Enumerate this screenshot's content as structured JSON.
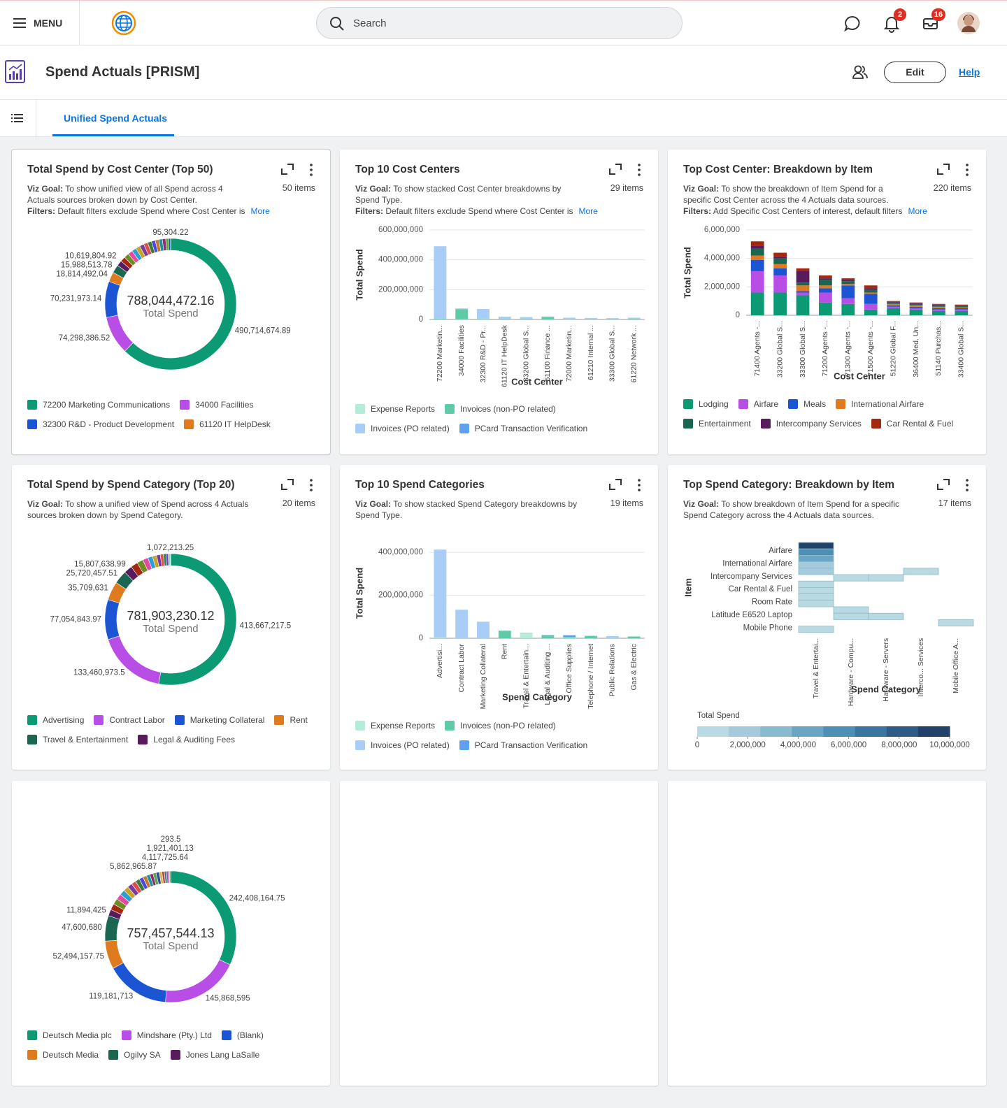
{
  "header": {
    "menu": "MENU",
    "search": "Search",
    "notifications": 2,
    "inbox": 16
  },
  "page": {
    "title": "Spend Actuals [PRISM]",
    "edit": "Edit",
    "help": "Help",
    "tab": "Unified Spend Actuals"
  },
  "chart_data": [
    {
      "type": "pie",
      "donut": true,
      "title": "Total Spend by Cost Center (Top 50)",
      "items": "50 items",
      "goal_label": "Viz Goal:",
      "goal": "To show unified view of all Spend across 4 Actuals sources broken down by Cost Center.",
      "filters_label": "Filters:",
      "filters": "Default filters exclude Spend where Cost Center is",
      "more": "More",
      "total": {
        "value": 788044472.16,
        "label": "788,044,472.16"
      },
      "total_caption": "Total Spend",
      "categories": [
        "72200 Marketing Communications",
        "34000 Facilities",
        "32300 R&D - Product Development",
        "61120 IT HelpDesk",
        null,
        null,
        null,
        null,
        null,
        null,
        null,
        null,
        null,
        null,
        null,
        null,
        null,
        null,
        null,
        null,
        null
      ],
      "values": [
        490714674.89,
        74298386.52,
        70231973.14,
        18814492.04,
        15988513.78,
        10619804.92,
        9800000,
        9500000,
        9200000,
        8900000,
        8600000,
        8300000,
        8000000,
        7700000,
        7400000,
        7100000,
        6800000,
        6500000,
        5500000,
        3900000,
        95304.22
      ],
      "value_labels": [
        "490,714,674.89",
        "74,298,386.52",
        "70,231,973.14",
        "18,814,492.04",
        "15,988,513.78",
        "10,619,804.92",
        null,
        null,
        null,
        null,
        null,
        null,
        null,
        null,
        null,
        null,
        null,
        null,
        null,
        null,
        "95,304.22"
      ],
      "colors": [
        "#0b9a74",
        "#b84ee6",
        "#1b55d4",
        "#e07a1f",
        "#1a6650",
        "#5a1a5e",
        "#a3280f",
        "#6b8e23",
        "#e64aa0",
        "#2a9fd6",
        "#c9a227",
        "#7a3b9e",
        "#d94f4f",
        "#3d7a3d",
        "#4a4ae0",
        "#c47a2c",
        "#1f8fa3",
        "#8c2d6b",
        "#57a845",
        "#2d4a9e",
        "#e0b43c"
      ]
    },
    {
      "type": "bar",
      "stacked": true,
      "grid": true,
      "title": "Top 10 Cost Centers",
      "items": "29 items",
      "goal_label": "Viz Goal:",
      "goal": "To show stacked Cost Center breakdowns by Spend Type.",
      "filters_label": "Filters:",
      "filters": "Default filters exclude Spend where Cost Center is",
      "more": "More",
      "ylabel": "Total Spend",
      "xlabel": "Cost Center",
      "ylim": [
        0,
        600000000
      ],
      "yticks": [
        0,
        {
          "value": 200000000,
          "label": "200,000,000"
        },
        {
          "value": 400000000,
          "label": "400,000,000"
        },
        {
          "value": 600000000,
          "label": "600,000,000"
        }
      ],
      "categories": [
        "72200 Marketin...",
        "34000 Facilities",
        "32300 R&D - Pr...",
        "61120 IT HelpDesk",
        "33200 Global S...",
        "51100 Finance ...",
        "72000 Marketin...",
        "61210 Internal ...",
        "33300 Global S...",
        "61220 Network ..."
      ],
      "series": [
        {
          "name": "Expense Reports",
          "color": "#b4ecdc",
          "values": [
            2000000,
            2000000,
            3000000,
            1000000,
            1000000,
            1000000,
            2000000,
            1000000,
            1000000,
            1000000
          ]
        },
        {
          "name": "Invoices (non-PO related)",
          "color": "#5fcba5",
          "values": [
            3000000,
            66000000,
            2000000,
            1000000,
            1000000,
            15000000,
            0,
            0,
            0,
            3000000
          ]
        },
        {
          "name": "Invoices (PO related)",
          "color": "#a8cdf7",
          "values": [
            485000000,
            6000000,
            65000000,
            17000000,
            14000000,
            4000000,
            10000000,
            9000000,
            8000000,
            8000000
          ]
        },
        {
          "name": "PCard Transaction Verification",
          "color": "#5ea2ef",
          "values": [
            700000,
            300000,
            0,
            0,
            0,
            0,
            0,
            0,
            0,
            0
          ]
        }
      ]
    },
    {
      "type": "bar",
      "stacked": true,
      "grid": true,
      "title": "Top Cost Center: Breakdown by Item",
      "items": "220 items",
      "goal_label": "Viz Goal:",
      "goal": "To show the breakdown of Item Spend for a specific Cost Center across the 4 Actuals data sources.",
      "filters_label": "Filters:",
      "filters": "Add Specific Cost Centers of interest, default filters",
      "more": "More",
      "ylabel": "Total Spend",
      "xlabel": "Cost Center",
      "ylim": [
        0,
        6000000
      ],
      "yticks": [
        0,
        {
          "value": 2000000,
          "label": "2,000,000"
        },
        {
          "value": 4000000,
          "label": "4,000,000"
        },
        {
          "value": 6000000,
          "label": "6,000,000"
        }
      ],
      "categories": [
        "71400 Agents -...",
        "33200 Global S...",
        "33300 Global S...",
        "71200 Agents -...",
        "71300 Agents -...",
        "71500 Agents -...",
        "51220 Global F...",
        "36400 Med. Un...",
        "51140 Purchas...",
        "33400 Global S..."
      ],
      "series": [
        {
          "name": "Lodging",
          "color": "#0b9a74",
          "values": [
            1600000,
            1600000,
            1400000,
            900000,
            800000,
            400000,
            500000,
            400000,
            300000,
            300000
          ]
        },
        {
          "name": "Airfare",
          "color": "#b84ee6",
          "values": [
            1500000,
            1200000,
            200000,
            700000,
            400000,
            400000,
            100000,
            100000,
            100000,
            100000
          ]
        },
        {
          "name": "Meals",
          "color": "#1b55d4",
          "values": [
            800000,
            500000,
            100000,
            300000,
            900000,
            700000,
            100000,
            100000,
            100000,
            100000
          ]
        },
        {
          "name": "International Airfare",
          "color": "#e07a1f",
          "values": [
            300000,
            300000,
            400000,
            200000,
            100000,
            100000,
            100000,
            100000,
            100000,
            50000
          ]
        },
        {
          "name": "Entertainment",
          "color": "#1a6650",
          "values": [
            500000,
            400000,
            200000,
            400000,
            200000,
            200000,
            100000,
            100000,
            100000,
            100000
          ]
        },
        {
          "name": "Intercompany Services",
          "color": "#5a1a5e",
          "values": [
            200000,
            100000,
            800000,
            100000,
            100000,
            100000,
            50000,
            50000,
            50000,
            50000
          ]
        },
        {
          "name": "Car Rental & Fuel",
          "color": "#a3280f",
          "values": [
            300000,
            300000,
            200000,
            200000,
            100000,
            200000,
            50000,
            50000,
            50000,
            50000
          ]
        }
      ]
    },
    {
      "type": "pie",
      "donut": true,
      "title": "Total Spend by Spend Category (Top 20)",
      "items": "20 items",
      "goal_label": "Viz Goal:",
      "goal": "To show a unified view of Spend across 4 Actuals sources broken down by Spend Category.",
      "total": {
        "value": 781903230.12,
        "label": "781,903,230.12"
      },
      "total_caption": "Total Spend",
      "categories": [
        "Advertising",
        "Contract Labor",
        "Marketing Collateral",
        "Rent",
        "Travel & Entertainment",
        "Legal & Auditing Fees",
        null,
        null,
        null,
        null,
        null,
        null,
        null,
        null,
        null,
        null,
        null,
        null
      ],
      "values": [
        413667217.5,
        133460973.5,
        77054843.97,
        35709631,
        25720457.51,
        15807638.99,
        13500000,
        12000000,
        10500000,
        9000000,
        8000000,
        7000000,
        6000000,
        5000000,
        4000000,
        2400000,
        1500000,
        1072213.25
      ],
      "value_labels": [
        "413,667,217.5",
        "133,460,973.5",
        "77,054,843.97",
        "35,709,631",
        "25,720,457.51",
        "15,807,638.99",
        null,
        null,
        null,
        null,
        null,
        null,
        null,
        null,
        null,
        null,
        null,
        "1,072,213.25"
      ],
      "colors": [
        "#0b9a74",
        "#b84ee6",
        "#1b55d4",
        "#e07a1f",
        "#1a6650",
        "#5a1a5e",
        "#a3280f",
        "#6b8e23",
        "#e64aa0",
        "#2a9fd6",
        "#c9a227",
        "#7a3b9e",
        "#d94f4f",
        "#3d7a3d",
        "#4a4ae0",
        "#c47a2c",
        "#1f8fa3",
        "#8c2d6b"
      ]
    },
    {
      "type": "bar",
      "stacked": true,
      "grid": true,
      "title": "Top 10 Spend Categories",
      "items": "19 items",
      "goal_label": "Viz Goal:",
      "goal": "To show stacked Spend Category breakdowns by Spend Type.",
      "ylabel": "Total Spend",
      "xlabel": "Spend Category",
      "ylim": [
        0,
        420000000
      ],
      "yticks": [
        0,
        {
          "value": 200000000,
          "label": "200,000,000"
        },
        {
          "value": 400000000,
          "label": "400,000,000"
        }
      ],
      "categories": [
        "Advertisi...",
        "Contract Labor",
        "Marketing Collateral",
        "Rent",
        "Travel & Entertain...",
        "Legal & Auditing ...",
        "Office Supplies",
        "Telephone / Internet",
        "Public Relations",
        "Gas & Electric"
      ],
      "series": [
        {
          "name": "Expense Reports",
          "color": "#b4ecdc",
          "values": [
            3000000,
            0,
            0,
            0,
            24000000,
            0,
            0,
            0,
            0,
            0
          ]
        },
        {
          "name": "Invoices (non-PO related)",
          "color": "#5fcba5",
          "values": [
            0,
            0,
            0,
            35000000,
            0,
            14000000,
            4000000,
            10000000,
            0,
            8000000
          ]
        },
        {
          "name": "Invoices (PO related)",
          "color": "#a8cdf7",
          "values": [
            410000000,
            133000000,
            77000000,
            0,
            2000000,
            2000000,
            2000000,
            2000000,
            10000000,
            0
          ]
        },
        {
          "name": "PCard Transaction Verification",
          "color": "#5ea2ef",
          "values": [
            0,
            0,
            0,
            0,
            0,
            0,
            8000000,
            0,
            0,
            0
          ]
        }
      ]
    },
    {
      "type": "heatmap",
      "title": "Top Spend Category: Breakdown by Item",
      "items": "17 items",
      "goal_label": "Viz Goal:",
      "goal": "To show breakdown of Item Spend for a specific Spend Category across the 4 Actuals data sources.",
      "ylabel": "Item",
      "xlabel": "Spend Category",
      "categories": [
        "Travel & Entertai...",
        "Hardware - Compu...",
        "Hardware - Servers",
        "Interco... Services",
        "Mobile Office A..."
      ],
      "rows": [
        null,
        "Airfare",
        null,
        "International Airfare",
        null,
        "Intercompany Services",
        null,
        "Car Rental & Fuel",
        null,
        "Room Rate",
        null,
        "Latitude E6520 Laptop",
        null,
        "Mobile Phone"
      ],
      "values": [
        [
          9500000,
          null,
          null,
          null,
          null
        ],
        [
          6000000,
          null,
          null,
          null,
          null
        ],
        [
          4000000,
          null,
          null,
          null,
          null
        ],
        [
          2000000,
          null,
          null,
          null,
          null
        ],
        [
          1500000,
          null,
          null,
          1000000,
          null
        ],
        [
          null,
          1000000,
          1000000,
          null,
          null
        ],
        [
          1000000,
          null,
          null,
          null,
          null
        ],
        [
          1000000,
          null,
          null,
          null,
          null
        ],
        [
          1000000,
          null,
          null,
          null,
          null
        ],
        [
          1000000,
          null,
          null,
          null,
          null
        ],
        [
          null,
          1000000,
          null,
          null,
          null
        ],
        [
          null,
          1000000,
          1000000,
          null,
          null
        ],
        [
          null,
          null,
          null,
          null,
          1000000
        ],
        [
          1000000,
          null,
          null,
          null,
          null
        ]
      ],
      "clim": [
        0,
        10000000
      ],
      "colorbar": {
        "title": "Total Spend",
        "colors": [
          "#b9dae3",
          "#a3cbdb",
          "#88bad0",
          "#6aa6c4",
          "#4d8fb5",
          "#3a76a0",
          "#2e5c86",
          "#22426a"
        ],
        "ticks": [
          0,
          {
            "value": 2000000,
            "label": "2,000,000"
          },
          {
            "value": 4000000,
            "label": "4,000,000"
          },
          {
            "value": 6000000,
            "label": "6,000,000"
          },
          {
            "value": 8000000,
            "label": "8,000,000"
          },
          {
            "value": 10000000,
            "label": "10,000,000"
          }
        ]
      }
    },
    {
      "type": "pie",
      "donut": true,
      "total": {
        "value": 757457544.13,
        "label": "757,457,544.13"
      },
      "total_caption": "Total Spend",
      "categories": [
        "Deutsch Media plc",
        "Mindshare (Pty.) Ltd",
        "(Blank)",
        "Deutsch Media",
        "Ogilvy SA",
        "Jones Lang LaSalle",
        null,
        null,
        null,
        null,
        null,
        null,
        null,
        null,
        null,
        null,
        null,
        null,
        null,
        null,
        null,
        null,
        null,
        null,
        null,
        null,
        null
      ],
      "values": [
        242408164.75,
        145868595,
        119181713,
        52494157.75,
        47600680,
        11894425,
        11500000,
        11000000,
        10500000,
        10000000,
        9500000,
        9000000,
        8500000,
        8000000,
        7500000,
        7000000,
        6500000,
        6000000,
        5900000,
        5862965.87,
        5000000,
        4500000,
        4117725.64,
        3500000,
        2200000,
        1921401.13,
        293.5
      ],
      "value_labels": [
        "242,408,164.75",
        "145,868,595",
        "119,181,713",
        "52,494,157.75",
        "47,600,680",
        "11,894,425",
        null,
        null,
        null,
        null,
        null,
        null,
        null,
        null,
        null,
        null,
        null,
        null,
        null,
        "5,862,965.87",
        null,
        null,
        "4,117,725.64",
        null,
        null,
        "1,921,401.13",
        "293.5"
      ],
      "colors": [
        "#0b9a74",
        "#b84ee6",
        "#1b55d4",
        "#e07a1f",
        "#1a6650",
        "#5a1a5e",
        "#a3280f",
        "#6b8e23",
        "#e64aa0",
        "#2a9fd6",
        "#c9a227",
        "#7a3b9e",
        "#d94f4f",
        "#3d7a3d",
        "#4a4ae0",
        "#c47a2c",
        "#1f8fa3",
        "#8c2d6b",
        "#57a845",
        "#2d4a9e",
        "#e0b43c",
        "#b34747",
        "#3a7d7d",
        "#9e4fc2",
        "#d4763b",
        "#2f6b3a",
        "#6a3d9a"
      ]
    }
  ]
}
